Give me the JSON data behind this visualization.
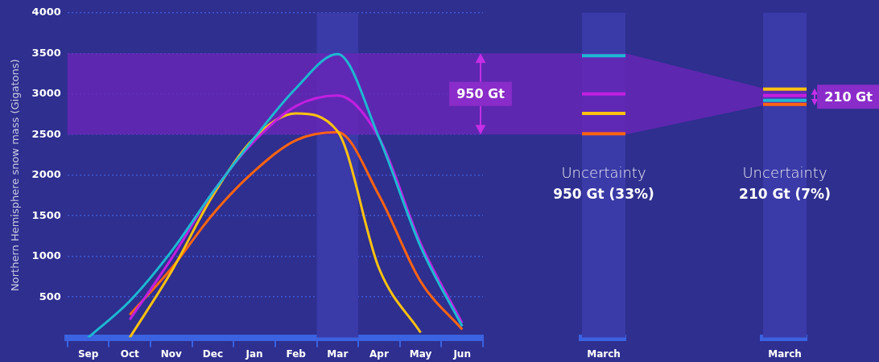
{
  "chart_data": [
    {
      "type": "line",
      "ylabel": "Northern Hemisphere snow mass (Gigatons)",
      "categories": [
        "Sep",
        "Oct",
        "Nov",
        "Dec",
        "Jan",
        "Feb",
        "Mar",
        "Apr",
        "May",
        "Jun"
      ],
      "ylim": [
        0,
        4000
      ],
      "yticks": [
        500,
        1000,
        1500,
        2000,
        2500,
        3000,
        3500,
        4000
      ],
      "grid": "y",
      "marker": "none",
      "legend": false,
      "series": [
        {
          "color": "#1cb9d2",
          "values": [
            0,
            450,
            1060,
            1790,
            2460,
            3070,
            3490,
            2460,
            1120,
            140
          ]
        },
        {
          "color": "#c21fe0",
          "values": [
            null,
            220,
            970,
            1790,
            2420,
            2850,
            2980,
            2460,
            1160,
            180
          ]
        },
        {
          "color": "#ffc20f",
          "values": [
            null,
            0,
            810,
            1750,
            2460,
            2760,
            2540,
            850,
            60,
            null
          ]
        },
        {
          "color": "#ff6412",
          "values": [
            null,
            280,
            850,
            1520,
            2050,
            2430,
            2530,
            1750,
            690,
            100
          ]
        }
      ],
      "bands": [
        {
          "axis": "x",
          "from": "Mar",
          "to": "Mar",
          "color": "#3a3aa8"
        },
        {
          "axis": "y",
          "from": 2500,
          "to": 3500,
          "label": "950 Gt",
          "color": "#6a26b8"
        }
      ]
    },
    {
      "type": "bar",
      "categories": [
        "March"
      ],
      "values": [
        null
      ],
      "ylim": [
        0,
        4000
      ],
      "tick_labels": "x",
      "legend": false,
      "bands": [
        {
          "axis": "y",
          "from": 2500,
          "to": 3500,
          "color": "#6a26b8"
        }
      ],
      "ref_lines": [
        {
          "axis": "y",
          "value": 3470,
          "color": "#1cb9d2"
        },
        {
          "axis": "y",
          "value": 3000,
          "color": "#c21fe0"
        },
        {
          "axis": "y",
          "value": 2760,
          "color": "#ffc20f"
        },
        {
          "axis": "y",
          "value": 2510,
          "color": "#ff6412"
        }
      ],
      "annotations": [
        "Uncertainty",
        "950 Gt (33%)"
      ]
    },
    {
      "type": "bar",
      "categories": [
        "March"
      ],
      "values": [
        null
      ],
      "ylim": [
        0,
        4000
      ],
      "tick_labels": "x",
      "legend": false,
      "bands": [
        {
          "axis": "y",
          "from": 2860,
          "to": 3070,
          "label": "210 Gt",
          "color": "#6a26b8"
        }
      ],
      "ref_lines": [
        {
          "axis": "y",
          "value": 3060,
          "color": "#ffc20f"
        },
        {
          "axis": "y",
          "value": 2980,
          "color": "#c21fe0"
        },
        {
          "axis": "y",
          "value": 2920,
          "color": "#1cb9d2"
        },
        {
          "axis": "y",
          "value": 2870,
          "color": "#ff6412"
        }
      ],
      "annotations": [
        "Uncertainty",
        "210 Gt (7%)"
      ]
    }
  ]
}
